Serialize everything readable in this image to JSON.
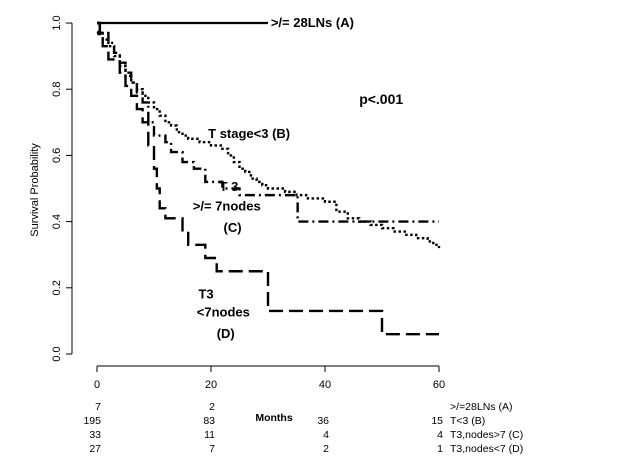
{
  "chart_data": {
    "type": "line",
    "step": true,
    "ylabel": "Survival Probability",
    "xlabel": "Months",
    "xlim": [
      0,
      60
    ],
    "ylim": [
      0,
      1
    ],
    "xticks": [
      "0",
      "20",
      "40",
      "60"
    ],
    "yticks": [
      "0.0",
      "0.2",
      "0.4",
      "0.6",
      "0.8",
      "1.0"
    ],
    "pvalue": "p<.001",
    "series": [
      {
        "name": ">/= 28LNs (A)",
        "dash": "solid",
        "points": [
          [
            0,
            1.0
          ],
          [
            30,
            1.0
          ]
        ]
      },
      {
        "name": "T stage<3 (B)",
        "dash": "dotted",
        "points": [
          [
            0,
            1.0
          ],
          [
            0.5,
            0.97
          ],
          [
            1,
            0.95
          ],
          [
            2,
            0.93
          ],
          [
            3,
            0.9
          ],
          [
            4,
            0.87
          ],
          [
            5,
            0.84
          ],
          [
            6,
            0.82
          ],
          [
            7,
            0.8
          ],
          [
            8,
            0.78
          ],
          [
            9,
            0.76
          ],
          [
            10,
            0.74
          ],
          [
            11,
            0.72
          ],
          [
            12,
            0.7
          ],
          [
            13,
            0.69
          ],
          [
            14,
            0.67
          ],
          [
            15,
            0.66
          ],
          [
            16,
            0.65
          ],
          [
            18,
            0.64
          ],
          [
            20,
            0.63
          ],
          [
            22,
            0.62
          ],
          [
            23,
            0.6
          ],
          [
            24,
            0.58
          ],
          [
            25,
            0.56
          ],
          [
            26,
            0.55
          ],
          [
            27,
            0.53
          ],
          [
            28,
            0.52
          ],
          [
            29,
            0.51
          ],
          [
            30,
            0.5
          ],
          [
            33,
            0.49
          ],
          [
            35,
            0.48
          ],
          [
            37,
            0.47
          ],
          [
            40,
            0.46
          ],
          [
            42,
            0.43
          ],
          [
            44,
            0.41
          ],
          [
            46,
            0.4
          ],
          [
            48,
            0.39
          ],
          [
            50,
            0.38
          ],
          [
            52,
            0.37
          ],
          [
            54,
            0.36
          ],
          [
            56,
            0.35
          ],
          [
            58,
            0.34
          ],
          [
            59,
            0.33
          ],
          [
            60,
            0.32
          ]
        ]
      },
      {
        "name": "T 3 >/= 7nodes (C)",
        "dash": "dashdot",
        "points": [
          [
            0,
            1.0
          ],
          [
            0.5,
            0.97
          ],
          [
            2,
            0.94
          ],
          [
            3,
            0.91
          ],
          [
            4,
            0.88
          ],
          [
            5,
            0.85
          ],
          [
            6,
            0.82
          ],
          [
            7,
            0.79
          ],
          [
            8,
            0.76
          ],
          [
            9,
            0.7
          ],
          [
            10,
            0.66
          ],
          [
            12,
            0.64
          ],
          [
            13,
            0.61
          ],
          [
            15,
            0.58
          ],
          [
            17,
            0.56
          ],
          [
            19,
            0.52
          ],
          [
            22,
            0.5
          ],
          [
            25,
            0.48
          ],
          [
            30,
            0.48
          ],
          [
            35,
            0.48
          ],
          [
            35.2,
            0.4
          ],
          [
            60,
            0.4
          ]
        ]
      },
      {
        "name": "T3 <7nodes (D)",
        "dash": "dashed",
        "points": [
          [
            0,
            1.0
          ],
          [
            0.5,
            0.96
          ],
          [
            1,
            0.93
          ],
          [
            2,
            0.89
          ],
          [
            4,
            0.85
          ],
          [
            5,
            0.81
          ],
          [
            6,
            0.78
          ],
          [
            7,
            0.74
          ],
          [
            8,
            0.7
          ],
          [
            9,
            0.63
          ],
          [
            10,
            0.56
          ],
          [
            10.5,
            0.5
          ],
          [
            11,
            0.44
          ],
          [
            12,
            0.41
          ],
          [
            15,
            0.37
          ],
          [
            16,
            0.33
          ],
          [
            19,
            0.29
          ],
          [
            21,
            0.25
          ],
          [
            29,
            0.25
          ],
          [
            30,
            0.13
          ],
          [
            49,
            0.13
          ],
          [
            50,
            0.06
          ],
          [
            60,
            0.06
          ]
        ]
      }
    ],
    "annotations": [
      {
        "text": ">/= 28LNs (A)",
        "x": 30.5,
        "y": 1.0
      },
      {
        "text": "T stage<3 (B)",
        "x": 19.5,
        "y": 0.665
      },
      {
        "text": "T 3",
        "x": 21.5,
        "y": 0.505
      },
      {
        "text": ">/= 7nodes",
        "x": 16.8,
        "y": 0.445
      },
      {
        "text": "(C)",
        "x": 22.2,
        "y": 0.38
      },
      {
        "text": "T3",
        "x": 17.8,
        "y": 0.18
      },
      {
        "text": "<7nodes",
        "x": 17.5,
        "y": 0.125
      },
      {
        "text": "(D)",
        "x": 21,
        "y": 0.06
      },
      {
        "text": "p<.001",
        "x": 46,
        "y": 0.755
      }
    ],
    "risk_table": {
      "times": [
        0,
        20,
        40,
        60
      ],
      "label": "Months",
      "rows": [
        {
          "counts": [
            "7",
            "2",
            "",
            ""
          ],
          "group": ">/=28LNs (A)"
        },
        {
          "counts": [
            "195",
            "83",
            "36",
            "15"
          ],
          "group": "T<3 (B)"
        },
        {
          "counts": [
            "33",
            "11",
            "4",
            "4"
          ],
          "group": "T3,nodes>7 (C)"
        },
        {
          "counts": [
            "27",
            "7",
            "2",
            "1"
          ],
          "group": "T3,nodes<7 (D)"
        }
      ]
    }
  }
}
